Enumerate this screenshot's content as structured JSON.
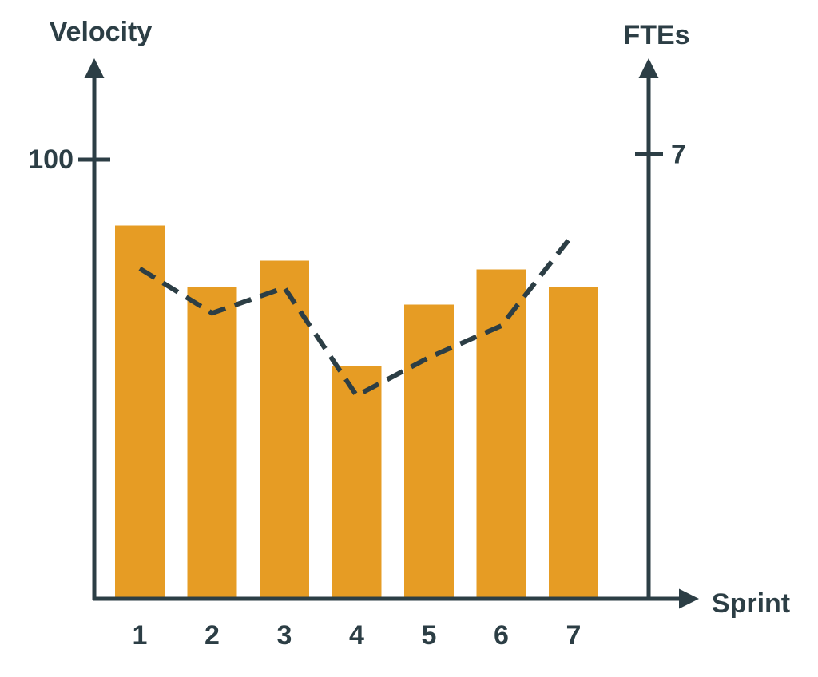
{
  "chart_data": {
    "type": "bar-line",
    "y_label": "Velocity",
    "y2_label": "FTEs",
    "x_label": "Sprint",
    "categories": [
      "1",
      "2",
      "3",
      "4",
      "5",
      "6",
      "7"
    ],
    "series": [
      {
        "name": "Velocity",
        "type": "bar",
        "color": "#e69c24",
        "values": [
          85,
          71,
          77,
          53,
          67,
          75,
          71
        ]
      },
      {
        "name": "FTEs",
        "type": "line",
        "axis": "y2",
        "color": "#2c3e45",
        "dashed": true,
        "values": [
          5.2,
          4.5,
          4.9,
          3.2,
          3.8,
          4.3,
          5.75
        ]
      }
    ],
    "ylim": [
      0,
      120
    ],
    "yticks": [
      100
    ],
    "y2lim": [
      0,
      8.3
    ],
    "y2ticks": [
      7
    ]
  }
}
